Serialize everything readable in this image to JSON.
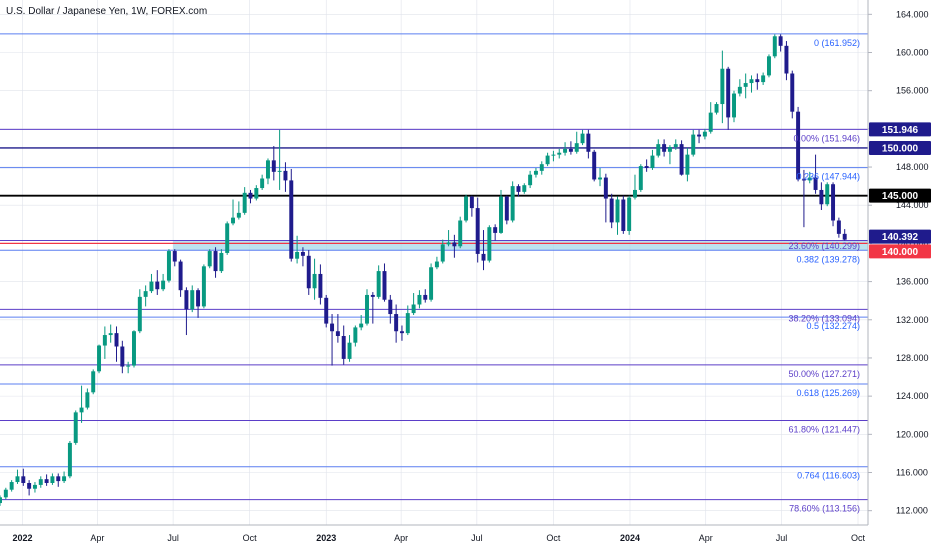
{
  "chart_data": {
    "type": "candlestick",
    "title": "U.S. Dollar / Japanese Yen, 1W, FOREX.com",
    "ylim": [
      110.5,
      165.5
    ],
    "x_range": [
      "2021-12-05",
      "2024-10-13"
    ],
    "y_ticks": [
      "164.000",
      "160.000",
      "156.000",
      "152.000",
      "148.000",
      "144.000",
      "140.000",
      "136.000",
      "132.000",
      "128.000",
      "124.000",
      "120.000",
      "116.000",
      "112.000"
    ],
    "y_tick_values": [
      164,
      160,
      156,
      152,
      148,
      144,
      140,
      136,
      132,
      128,
      124,
      120,
      116,
      112
    ],
    "x_ticks": [
      {
        "label": "2022",
        "date": "2022-01-01",
        "bold": true
      },
      {
        "label": "Apr",
        "date": "2022-04-01",
        "bold": false
      },
      {
        "label": "Jul",
        "date": "2022-07-01",
        "bold": false
      },
      {
        "label": "Oct",
        "date": "2022-10-01",
        "bold": false
      },
      {
        "label": "2023",
        "date": "2023-01-01",
        "bold": true
      },
      {
        "label": "Apr",
        "date": "2023-04-01",
        "bold": false
      },
      {
        "label": "Jul",
        "date": "2023-07-01",
        "bold": false
      },
      {
        "label": "Oct",
        "date": "2023-10-01",
        "bold": false
      },
      {
        "label": "2024",
        "date": "2024-01-01",
        "bold": true
      },
      {
        "label": "Apr",
        "date": "2024-04-01",
        "bold": false
      },
      {
        "label": "Jul",
        "date": "2024-07-01",
        "bold": false
      },
      {
        "label": "Oct",
        "date": "2024-10-01",
        "bold": false
      }
    ],
    "levels": [
      {
        "value": 161.952,
        "label": "0 (161.952)",
        "color": "#5b7ff0",
        "text_color": "#2962ff"
      },
      {
        "value": 151.946,
        "label": "0.00% (151.946)",
        "color": "#5b3ec8",
        "text_color": "#5b3ec8"
      },
      {
        "value": 147.944,
        "label": "0.236 (147.944)",
        "color": "#5b7ff0",
        "text_color": "#2962ff"
      },
      {
        "value": 140.299,
        "label": "23.60% (140.299)",
        "color": "#5b3ec8",
        "text_color": "#5b3ec8"
      },
      {
        "value": 139.278,
        "label": "0.382 (139.278)",
        "color": "#5b7ff0",
        "text_color": "#2962ff"
      },
      {
        "value": 133.094,
        "label": "38.20% (133.094)",
        "color": "#5b3ec8",
        "text_color": "#5b3ec8"
      },
      {
        "value": 132.274,
        "label": "0.5 (132.274)",
        "color": "#5b7ff0",
        "text_color": "#2962ff"
      },
      {
        "value": 127.271,
        "label": "50.00% (127.271)",
        "color": "#5b3ec8",
        "text_color": "#5b3ec8"
      },
      {
        "value": 125.269,
        "label": "0.618 (125.269)",
        "color": "#5b7ff0",
        "text_color": "#2962ff"
      },
      {
        "value": 121.447,
        "label": "61.80% (121.447)",
        "color": "#5b3ec8",
        "text_color": "#5b3ec8"
      },
      {
        "value": 116.603,
        "label": "0.764 (116.603)",
        "color": "#5b7ff0",
        "text_color": "#2962ff"
      },
      {
        "value": 113.156,
        "label": "78.60% (113.156)",
        "color": "#5b3ec8",
        "text_color": "#5b3ec8"
      }
    ],
    "horizontal_lines": [
      {
        "value": 150.0,
        "color": "#1f1b8c",
        "width": 1.3
      },
      {
        "value": 145.0,
        "color": "#000000",
        "width": 1.8
      },
      {
        "value": 140.0,
        "color": "#f23645",
        "width": 1.3
      }
    ],
    "zone": {
      "from": 139.278,
      "to": 140.299,
      "start": "2022-07-01",
      "color": "#a6d8ea"
    },
    "price_tags": [
      {
        "value": 151.946,
        "label": "151.946",
        "bg": "#1f1b8c",
        "fg": "#ffffff"
      },
      {
        "value": 150.0,
        "label": "150.000",
        "bg": "#1f1b8c",
        "fg": "#ffffff"
      },
      {
        "value": 145.0,
        "label": "145.000",
        "bg": "#000000",
        "fg": "#ffffff"
      },
      {
        "value": 140.392,
        "label": "140.392",
        "bg": "#1f1b8c",
        "fg": "#ffffff"
      },
      {
        "value": 140.0,
        "label": "140.000",
        "bg": "#f23645",
        "fg": "#ffffff"
      }
    ],
    "colors": {
      "up": "#089981",
      "down": "#1f1b8c",
      "grid": "#e0e3eb"
    },
    "candles": {
      "start_date": "2021-12-05",
      "ohlc": [
        [
          112.8,
          113.6,
          112.5,
          113.4
        ],
        [
          113.4,
          114.4,
          113.2,
          114.2
        ],
        [
          114.2,
          115.2,
          114.0,
          115.0
        ],
        [
          115.0,
          116.3,
          114.8,
          115.6
        ],
        [
          115.6,
          116.4,
          114.6,
          114.9
        ],
        [
          114.9,
          115.2,
          113.6,
          114.3
        ],
        [
          114.3,
          115.0,
          113.9,
          114.7
        ],
        [
          114.7,
          115.6,
          114.4,
          115.3
        ],
        [
          115.3,
          115.8,
          114.6,
          114.9
        ],
        [
          114.9,
          115.9,
          114.7,
          115.6
        ],
        [
          115.6,
          115.9,
          114.5,
          115.1
        ],
        [
          115.1,
          116.1,
          114.9,
          115.6
        ],
        [
          115.6,
          119.3,
          115.4,
          119.1
        ],
        [
          119.1,
          122.5,
          118.9,
          122.3
        ],
        [
          122.3,
          125.1,
          121.2,
          122.8
        ],
        [
          122.8,
          124.8,
          122.6,
          124.4
        ],
        [
          124.4,
          126.8,
          124.2,
          126.6
        ],
        [
          126.6,
          129.4,
          126.4,
          129.3
        ],
        [
          129.3,
          131.3,
          127.9,
          130.4
        ],
        [
          130.4,
          131.5,
          129.6,
          130.6
        ],
        [
          130.6,
          131.3,
          127.6,
          129.2
        ],
        [
          129.2,
          129.8,
          126.4,
          127.1
        ],
        [
          127.1,
          127.6,
          126.4,
          127.2
        ],
        [
          127.2,
          130.9,
          127.0,
          130.8
        ],
        [
          130.8,
          135.2,
          130.6,
          134.4
        ],
        [
          134.4,
          135.6,
          133.4,
          135.0
        ],
        [
          135.0,
          136.8,
          134.8,
          136.0
        ],
        [
          136.0,
          137.2,
          134.6,
          135.2
        ],
        [
          135.2,
          136.8,
          135.0,
          136.1
        ],
        [
          136.1,
          139.4,
          135.9,
          139.2
        ],
        [
          139.2,
          139.4,
          137.6,
          138.1
        ],
        [
          138.1,
          138.3,
          134.4,
          135.1
        ],
        [
          135.1,
          135.4,
          130.4,
          133.1
        ],
        [
          133.1,
          135.6,
          132.8,
          135.1
        ],
        [
          135.1,
          135.3,
          132.2,
          133.4
        ],
        [
          133.4,
          137.8,
          133.2,
          137.6
        ],
        [
          137.6,
          139.4,
          137.4,
          139.2
        ],
        [
          139.2,
          139.6,
          136.4,
          137.1
        ],
        [
          137.1,
          139.4,
          136.9,
          139.0
        ],
        [
          139.0,
          142.3,
          138.8,
          142.1
        ],
        [
          142.1,
          144.6,
          141.9,
          142.7
        ],
        [
          142.7,
          144.4,
          142.5,
          143.2
        ],
        [
          143.2,
          145.9,
          143.0,
          145.3
        ],
        [
          145.3,
          145.6,
          144.2,
          144.7
        ],
        [
          144.7,
          146.1,
          144.5,
          145.8
        ],
        [
          145.8,
          147.2,
          145.6,
          146.8
        ],
        [
          146.8,
          148.9,
          146.2,
          148.7
        ],
        [
          148.7,
          150.2,
          146.6,
          147.5
        ],
        [
          147.5,
          151.9,
          145.6,
          147.6
        ],
        [
          147.6,
          148.5,
          145.4,
          146.6
        ],
        [
          146.6,
          147.8,
          138.1,
          138.4
        ],
        [
          138.4,
          140.8,
          137.9,
          139.1
        ],
        [
          139.1,
          139.6,
          137.6,
          138.7
        ],
        [
          138.7,
          139.3,
          134.6,
          135.3
        ],
        [
          135.3,
          138.4,
          134.1,
          136.8
        ],
        [
          136.8,
          137.8,
          133.6,
          134.3
        ],
        [
          134.3,
          134.6,
          131.2,
          131.6
        ],
        [
          131.6,
          132.6,
          127.2,
          130.8
        ],
        [
          130.8,
          132.6,
          129.6,
          130.3
        ],
        [
          130.3,
          131.4,
          127.3,
          127.9
        ],
        [
          127.9,
          130.4,
          127.6,
          129.6
        ],
        [
          129.6,
          131.4,
          129.2,
          131.2
        ],
        [
          131.2,
          132.5,
          130.9,
          131.6
        ],
        [
          131.6,
          135.2,
          131.4,
          134.6
        ],
        [
          134.6,
          134.9,
          131.6,
          134.4
        ],
        [
          134.4,
          137.7,
          134.2,
          137.1
        ],
        [
          137.1,
          137.9,
          133.9,
          134.1
        ],
        [
          134.1,
          134.6,
          131.6,
          132.6
        ],
        [
          132.6,
          133.6,
          129.6,
          130.8
        ],
        [
          130.8,
          131.4,
          129.8,
          130.6
        ],
        [
          130.6,
          133.5,
          130.4,
          132.7
        ],
        [
          132.7,
          134.8,
          132.5,
          133.6
        ],
        [
          133.6,
          135.1,
          133.2,
          134.6
        ],
        [
          134.6,
          135.2,
          133.8,
          134.1
        ],
        [
          134.1,
          137.9,
          133.9,
          137.5
        ],
        [
          137.5,
          138.6,
          137.3,
          138.1
        ],
        [
          138.1,
          140.4,
          137.9,
          139.9
        ],
        [
          139.9,
          141.4,
          139.7,
          140.1
        ],
        [
          140.1,
          140.9,
          138.5,
          139.7
        ],
        [
          139.7,
          142.8,
          139.5,
          142.4
        ],
        [
          142.4,
          145.1,
          142.2,
          144.9
        ],
        [
          144.9,
          145.0,
          142.8,
          143.7
        ],
        [
          143.7,
          144.8,
          138.0,
          138.9
        ],
        [
          138.9,
          141.4,
          137.2,
          138.2
        ],
        [
          138.2,
          141.9,
          138.0,
          141.7
        ],
        [
          141.7,
          142.0,
          140.3,
          141.1
        ],
        [
          141.1,
          145.6,
          141.0,
          144.9
        ],
        [
          144.9,
          145.0,
          142.0,
          142.4
        ],
        [
          142.4,
          146.5,
          142.2,
          146.0
        ],
        [
          146.0,
          146.2,
          144.9,
          145.4
        ],
        [
          145.4,
          146.3,
          145.2,
          146.1
        ],
        [
          146.1,
          147.6,
          145.8,
          147.2
        ],
        [
          147.2,
          147.9,
          146.9,
          147.6
        ],
        [
          147.6,
          148.6,
          147.2,
          148.3
        ],
        [
          148.3,
          149.5,
          148.1,
          149.2
        ],
        [
          149.2,
          149.7,
          148.6,
          149.3
        ],
        [
          149.3,
          149.9,
          148.9,
          149.5
        ],
        [
          149.5,
          150.6,
          149.2,
          149.9
        ],
        [
          149.9,
          150.7,
          149.3,
          149.6
        ],
        [
          149.6,
          151.7,
          149.4,
          150.5
        ],
        [
          150.5,
          151.9,
          150.3,
          151.5
        ],
        [
          151.5,
          151.9,
          148.9,
          149.6
        ],
        [
          149.6,
          149.8,
          146.5,
          146.7
        ],
        [
          146.7,
          147.9,
          146.0,
          146.9
        ],
        [
          146.9,
          147.3,
          142.2,
          144.7
        ],
        [
          144.7,
          145.2,
          141.6,
          142.2
        ],
        [
          142.2,
          144.9,
          140.9,
          144.6
        ],
        [
          144.6,
          145.0,
          141.0,
          141.3
        ],
        [
          141.3,
          145.0,
          140.9,
          144.8
        ],
        [
          144.8,
          147.2,
          144.6,
          145.6
        ],
        [
          145.6,
          148.3,
          145.4,
          148.1
        ],
        [
          148.1,
          148.8,
          147.5,
          147.9
        ],
        [
          147.9,
          149.8,
          147.7,
          149.2
        ],
        [
          149.2,
          150.9,
          149.0,
          150.4
        ],
        [
          150.4,
          150.9,
          149.1,
          149.6
        ],
        [
          149.6,
          150.3,
          148.3,
          150.1
        ],
        [
          150.1,
          150.9,
          149.8,
          150.4
        ],
        [
          150.4,
          150.8,
          147.1,
          147.2
        ],
        [
          147.2,
          150.0,
          146.5,
          149.3
        ],
        [
          149.3,
          151.9,
          149.1,
          151.4
        ],
        [
          151.4,
          151.9,
          150.5,
          151.2
        ],
        [
          151.2,
          152.0,
          150.9,
          151.7
        ],
        [
          151.7,
          154.8,
          151.5,
          153.7
        ],
        [
          153.7,
          154.8,
          153.5,
          154.6
        ],
        [
          154.6,
          160.2,
          152.6,
          158.3
        ],
        [
          158.3,
          158.5,
          151.9,
          153.2
        ],
        [
          153.2,
          156.0,
          152.7,
          155.7
        ],
        [
          155.7,
          157.2,
          155.4,
          156.4
        ],
        [
          156.4,
          157.8,
          155.2,
          156.8
        ],
        [
          156.8,
          157.6,
          155.8,
          157.2
        ],
        [
          157.2,
          157.8,
          156.1,
          156.9
        ],
        [
          156.9,
          157.9,
          156.6,
          157.6
        ],
        [
          157.6,
          159.8,
          157.4,
          159.6
        ],
        [
          159.6,
          161.9,
          159.4,
          161.7
        ],
        [
          161.7,
          161.9,
          160.1,
          160.7
        ],
        [
          160.7,
          161.2,
          157.1,
          157.8
        ],
        [
          157.8,
          158.1,
          153.1,
          153.8
        ],
        [
          153.8,
          154.3,
          146.5,
          146.7
        ],
        [
          146.7,
          147.7,
          141.7,
          146.6
        ],
        [
          146.6,
          147.5,
          146.3,
          146.9
        ],
        [
          146.9,
          149.3,
          145.2,
          145.6
        ],
        [
          145.6,
          146.4,
          143.5,
          144.1
        ],
        [
          144.1,
          146.4,
          143.9,
          146.2
        ],
        [
          146.2,
          146.4,
          141.8,
          142.4
        ],
        [
          142.4,
          142.7,
          140.6,
          141.0
        ],
        [
          141.0,
          141.5,
          140.3,
          140.392
        ]
      ]
    }
  }
}
